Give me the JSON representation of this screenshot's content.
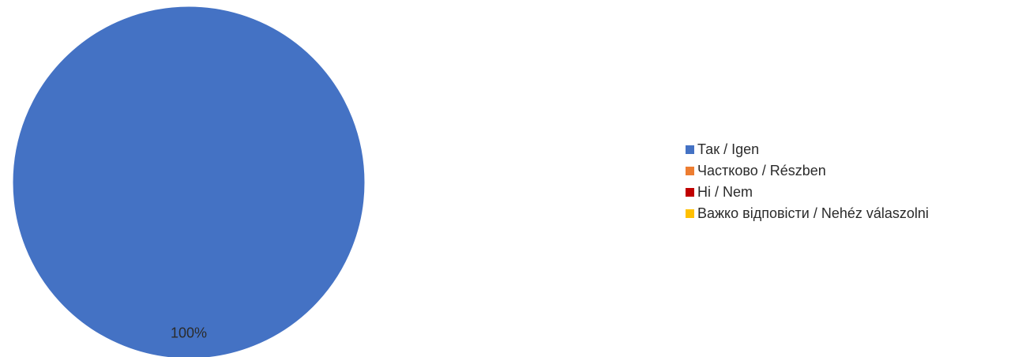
{
  "chart_data": {
    "type": "pie",
    "title": "",
    "categories": [
      "Так / Igen",
      "Частково / Részben",
      "Ні / Nem",
      "Важко відповісти / Nehéz válaszolni"
    ],
    "values": [
      100,
      0,
      0,
      0
    ],
    "colors": [
      "#4472C4",
      "#ED7D31",
      "#C00000",
      "#FFC000"
    ],
    "data_labels": [
      "100%",
      "",
      "",
      ""
    ],
    "legend_position": "right"
  }
}
